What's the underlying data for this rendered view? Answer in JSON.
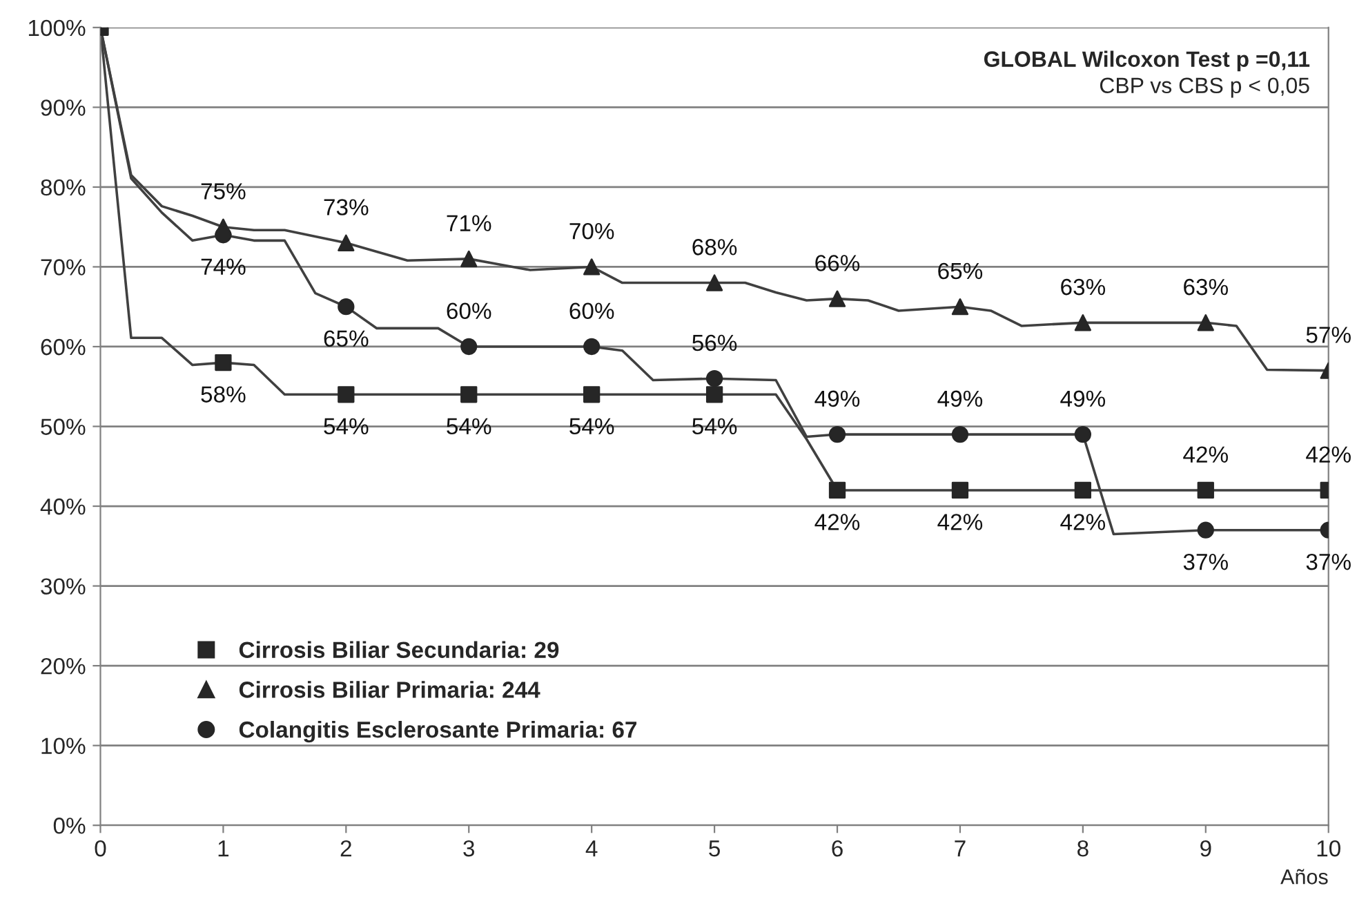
{
  "chart_data": {
    "type": "line",
    "annotations": [
      "GLOBAL Wilcoxon Test p =0,11",
      "CBP vs CBS p < 0,05"
    ],
    "xlabel": "Años",
    "xlim": [
      0,
      10
    ],
    "xticks": [
      0,
      1,
      2,
      3,
      4,
      5,
      6,
      7,
      8,
      9,
      10
    ],
    "ylim": [
      0,
      100
    ],
    "yticks": [
      {
        "value": 0,
        "label": "0%"
      },
      {
        "value": 10,
        "label": "10%"
      },
      {
        "value": 20,
        "label": "20%"
      },
      {
        "value": 30,
        "label": "30%"
      },
      {
        "value": 40,
        "label": "40%"
      },
      {
        "value": 50,
        "label": "50%"
      },
      {
        "value": 60,
        "label": "60%"
      },
      {
        "value": 70,
        "label": "70%"
      },
      {
        "value": 80,
        "label": "80%"
      },
      {
        "value": 90,
        "label": "90%"
      },
      {
        "value": 100,
        "label": "100%"
      }
    ],
    "grid": "y",
    "legend": "bottom left",
    "series": [
      {
        "color": "#404040",
        "marker": "none",
        "x": [
          0,
          0.25,
          0.5,
          0.75,
          1,
          1.25,
          1.5,
          2,
          2.25,
          2.5,
          3,
          3.25,
          3.5,
          4,
          4.25,
          5,
          5.25,
          5.5,
          5.75,
          6,
          6.25,
          6.5,
          7,
          7.25,
          7.5,
          8,
          9,
          9.25,
          9.5,
          10
        ],
        "values": [
          100,
          81.5,
          77.6,
          76.4,
          75,
          74.6,
          74.6,
          73,
          71.9,
          70.8,
          71,
          70.3,
          69.6,
          70,
          68,
          68,
          68,
          66.8,
          65.8,
          66,
          65.8,
          64.5,
          65,
          64.5,
          62.6,
          63,
          63,
          62.6,
          57.1,
          57
        ]
      },
      {
        "color": "#404040",
        "marker": "none",
        "x": [
          0,
          0.25,
          0.5,
          0.75,
          1,
          1.25,
          1.5,
          1.75,
          2,
          2.25,
          2.75,
          3,
          4,
          4.25,
          4.5,
          5,
          5.5,
          5.75,
          6,
          8,
          8.25,
          9,
          10
        ],
        "values": [
          100,
          81.1,
          76.8,
          73.3,
          74,
          73.3,
          73.3,
          66.7,
          65,
          62.3,
          62.3,
          60,
          60,
          59.5,
          55.8,
          56,
          55.8,
          48.7,
          49,
          49,
          36.5,
          37,
          37
        ]
      },
      {
        "color": "#404040",
        "marker": "none",
        "x": [
          0,
          0.25,
          0.5,
          0.75,
          1,
          1.25,
          1.5,
          5.5,
          5.75,
          6,
          10
        ],
        "values": [
          100,
          61.1,
          61.1,
          57.7,
          58,
          57.7,
          54,
          54,
          48.4,
          42,
          42
        ]
      },
      {
        "type": "scatter",
        "name": "Cirrosis Biliar Secundaria: 29",
        "color": "#262626",
        "marker": "square",
        "x": [
          0,
          1,
          2,
          3,
          4,
          5,
          6,
          7,
          8,
          9,
          10
        ],
        "values": [
          100,
          58,
          54,
          54,
          54,
          54,
          42,
          42,
          42,
          42,
          42
        ],
        "value_labels": [
          null,
          "58%",
          "54%",
          "54%",
          "54%",
          "54%",
          "42%",
          "42%",
          "42%",
          "42%",
          "42%"
        ]
      },
      {
        "type": "scatter",
        "name": "Cirrosis Biliar Primaria: 244",
        "color": "#262626",
        "marker": "triangle",
        "x": [
          1,
          2,
          3,
          4,
          5,
          6,
          7,
          8,
          9,
          10
        ],
        "values": [
          75,
          73,
          71,
          70,
          68,
          66,
          65,
          63,
          63,
          57
        ],
        "value_labels": [
          "75%",
          "73%",
          "71%",
          "70%",
          "68%",
          "66%",
          "65%",
          "63%",
          "63%",
          "57%"
        ]
      },
      {
        "type": "scatter",
        "name": "Colangitis Esclerosante Primaria: 67",
        "color": "#262626",
        "marker": "circle",
        "x": [
          1,
          2,
          3,
          4,
          5,
          6,
          7,
          8,
          9,
          10
        ],
        "values": [
          74,
          65,
          60,
          60,
          56,
          49,
          49,
          49,
          37,
          37
        ],
        "value_labels": [
          "74%",
          "65%",
          "60%",
          "60%",
          "56%",
          "49%",
          "49%",
          "49%",
          "37%",
          "37%"
        ]
      }
    ]
  }
}
